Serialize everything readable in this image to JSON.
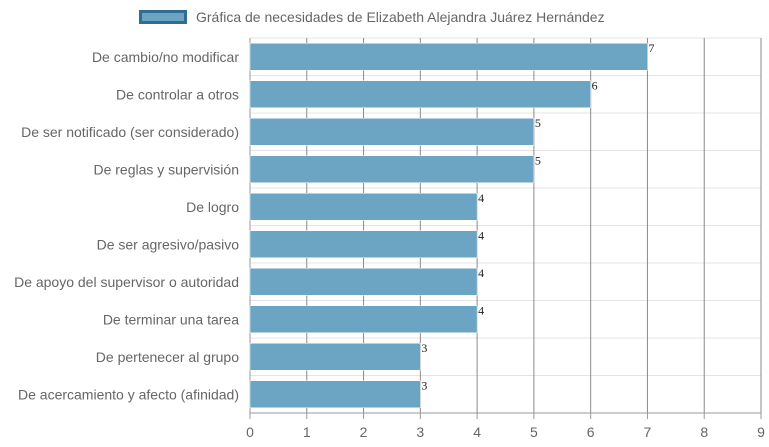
{
  "colors": {
    "bar_fill": "#6ca4c3",
    "bar_border": "#2f6d93",
    "grid": "#e4e4e4",
    "grid_major": "#8a8a8a",
    "axis": "#999999"
  },
  "chart_data": {
    "type": "bar",
    "orientation": "horizontal",
    "legend": {
      "label": "Gráfica de necesidades de Elizabeth Alejandra Juárez Hernández",
      "placement": "top"
    },
    "categories": [
      "De cambio/no modificar",
      "De controlar a otros",
      "De ser notificado (ser considerado)",
      "De reglas y supervisión",
      "De logro",
      "De ser agresivo/pasivo",
      "De apoyo del supervisor o autoridad",
      "De terminar una tarea",
      "De pertenecer al grupo",
      "De acercamiento y afecto (afinidad)"
    ],
    "values": [
      7,
      6,
      5,
      5,
      4,
      4,
      4,
      4,
      3,
      3
    ],
    "data_labels": [
      "7",
      "6",
      "5",
      "5",
      "4",
      "4",
      "4",
      "4",
      "3",
      "3"
    ],
    "xlim": [
      0,
      9
    ],
    "x_ticks": [
      "0",
      "1",
      "2",
      "3",
      "4",
      "5",
      "6",
      "7",
      "8",
      "9"
    ],
    "grid": true
  }
}
